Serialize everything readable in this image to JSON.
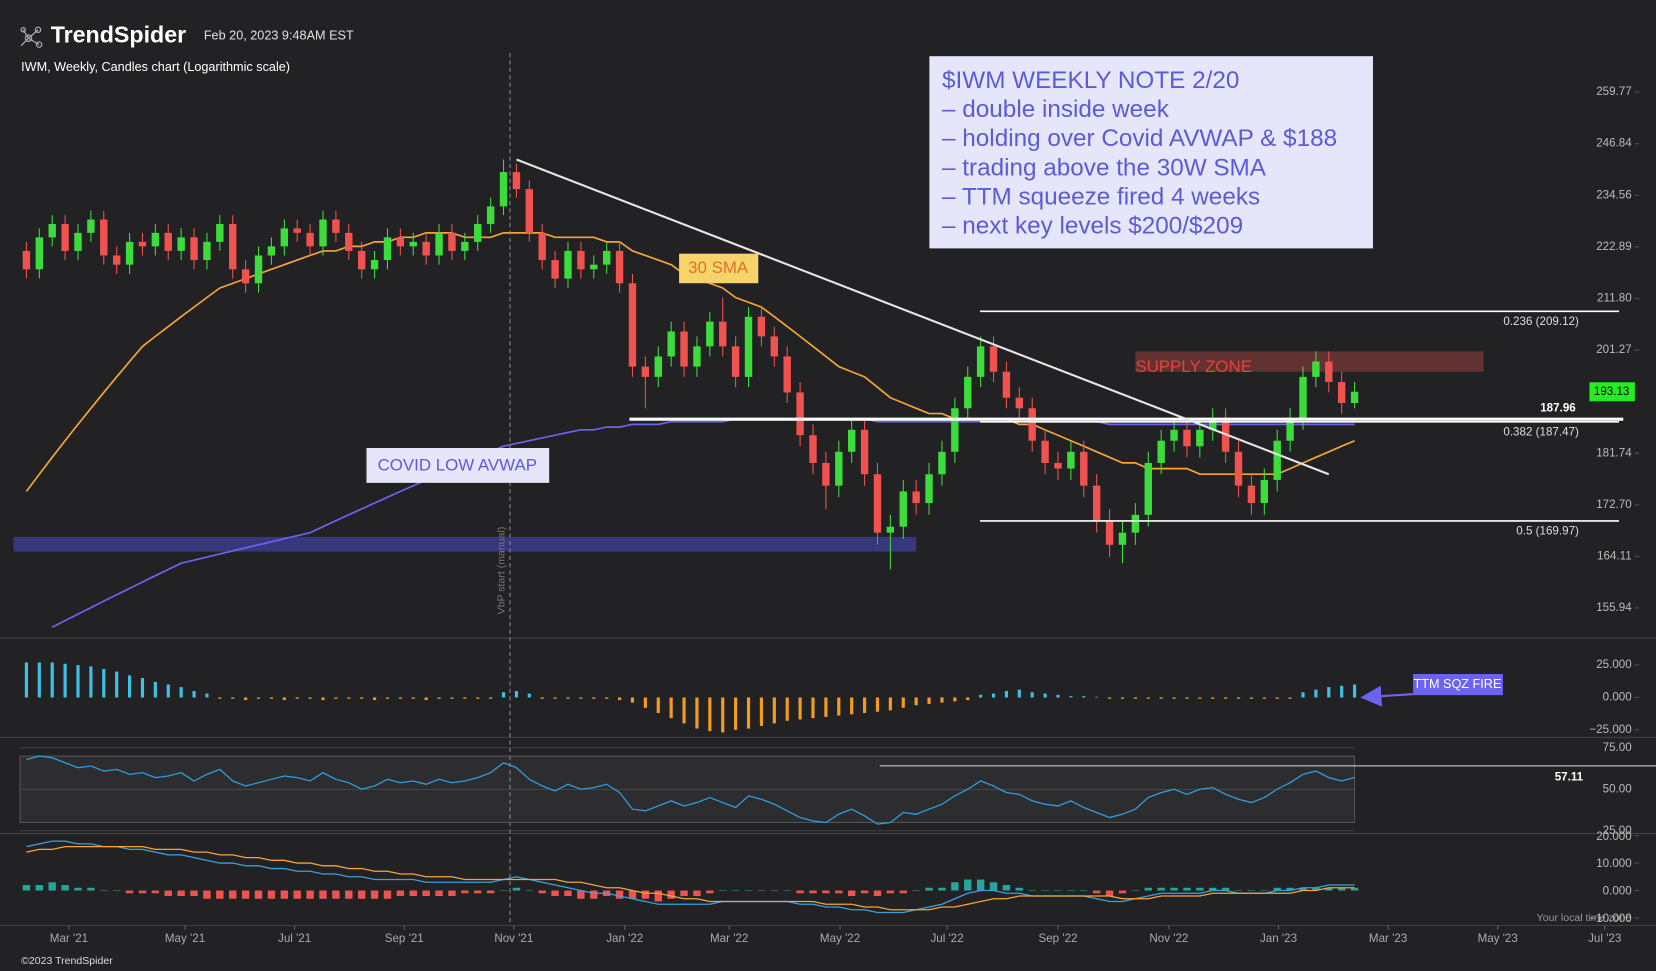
{
  "header": {
    "brand": "TrendSpider",
    "timestamp": "Feb 20, 2023 9:48AM EST",
    "subtitle": "IWM, Weekly, Candles chart (Logarithmic scale)",
    "copyright": "©2023 TrendSpider",
    "timezone": "Your local time zone"
  },
  "chart_data": [
    {
      "type": "candlestick",
      "log_scale": true,
      "xlim": [
        -1,
        124
      ],
      "xticks": [
        {
          "value": 3.3,
          "label": "Mar '21"
        },
        {
          "value": 12.3,
          "label": "May '21"
        },
        {
          "value": 20.8,
          "label": "Jul '21"
        },
        {
          "value": 29.3,
          "label": "Sep '21"
        },
        {
          "value": 37.8,
          "label": "Nov '21"
        },
        {
          "value": 46.4,
          "label": "Jan '22"
        },
        {
          "value": 54.5,
          "label": "Mar '22"
        },
        {
          "value": 63.1,
          "label": "May '22"
        },
        {
          "value": 71.4,
          "label": "Jul '22"
        },
        {
          "value": 80,
          "label": "Sep '22"
        },
        {
          "value": 88.6,
          "label": "Nov '22"
        },
        {
          "value": 97.1,
          "label": "Jan '23"
        },
        {
          "value": 105.6,
          "label": "Mar '23"
        },
        {
          "value": 114.1,
          "label": "May '23"
        },
        {
          "value": 122.4,
          "label": "Jul '23"
        }
      ],
      "ylim": [
        152,
        270
      ],
      "yticks": [
        155.94,
        164.11,
        {
          "value": 172.7,
          "label": "172.70"
        },
        181.74,
        201.27,
        {
          "value": 211.8,
          "label": "211.80"
        },
        222.89,
        234.56,
        246.84,
        259.77
      ],
      "up_color": "#3ddc3d",
      "down_color": "#f0524f",
      "open": [
        222,
        218,
        225,
        228,
        222,
        226,
        229,
        221,
        219,
        224,
        223,
        226,
        222,
        225,
        220,
        224,
        228,
        218,
        215,
        221,
        223,
        227,
        226,
        223,
        229,
        226,
        222,
        218,
        220,
        225,
        223,
        224,
        221,
        226,
        222,
        224,
        228,
        232,
        240,
        236,
        226,
        220,
        216,
        222,
        218,
        219,
        222,
        215,
        198,
        196,
        200,
        205,
        198,
        202,
        207,
        202,
        196,
        208,
        204,
        200,
        193,
        185,
        180,
        176,
        182,
        186,
        178,
        168,
        169,
        175,
        173,
        178,
        182,
        190,
        196,
        202,
        197,
        192,
        190,
        184,
        180,
        179,
        182,
        176,
        170,
        166,
        168,
        171,
        180,
        184,
        186,
        183,
        186,
        188,
        182,
        176,
        173,
        177,
        184,
        188,
        196,
        199,
        195,
        191
      ],
      "high": [
        224,
        227,
        230,
        230,
        228,
        231,
        231,
        223,
        226,
        226,
        228,
        228,
        227,
        227,
        226,
        230,
        230,
        220,
        223,
        225,
        229,
        229,
        228,
        231,
        231,
        228,
        224,
        222,
        227,
        227,
        226,
        226,
        228,
        228,
        226,
        230,
        234,
        243,
        242,
        238,
        228,
        222,
        224,
        224,
        221,
        224,
        224,
        217,
        200,
        202,
        207,
        207,
        204,
        209,
        212,
        204,
        210,
        210,
        206,
        202,
        195,
        187,
        182,
        184,
        188,
        188,
        180,
        171,
        177,
        177,
        180,
        184,
        192,
        198,
        204,
        204,
        199,
        194,
        192,
        186,
        182,
        184,
        184,
        178,
        172,
        170,
        173,
        182,
        186,
        188,
        188,
        188,
        190,
        190,
        184,
        178,
        179,
        186,
        190,
        198,
        201,
        201,
        197,
        195
      ],
      "low": [
        216,
        216,
        223,
        220,
        220,
        224,
        219,
        217,
        217,
        221,
        221,
        220,
        220,
        218,
        218,
        222,
        216,
        213,
        213,
        219,
        221,
        224,
        221,
        221,
        224,
        220,
        216,
        216,
        218,
        221,
        221,
        219,
        219,
        220,
        220,
        222,
        226,
        230,
        234,
        224,
        218,
        214,
        214,
        216,
        216,
        217,
        213,
        196,
        190,
        194,
        198,
        196,
        196,
        200,
        200,
        194,
        194,
        202,
        198,
        191,
        183,
        178,
        172,
        174,
        180,
        176,
        166,
        162,
        167,
        171,
        171,
        176,
        180,
        188,
        194,
        195,
        190,
        188,
        182,
        178,
        177,
        177,
        174,
        168,
        164,
        163,
        166,
        169,
        178,
        182,
        181,
        181,
        184,
        180,
        174,
        171,
        171,
        175,
        182,
        186,
        194,
        193,
        189,
        190
      ],
      "close": [
        218,
        225,
        228,
        222,
        226,
        229,
        221,
        219,
        224,
        223,
        226,
        222,
        225,
        220,
        224,
        228,
        218,
        215,
        221,
        223,
        227,
        226,
        223,
        229,
        226,
        222,
        218,
        220,
        225,
        223,
        224,
        221,
        226,
        222,
        224,
        228,
        232,
        240,
        236,
        226,
        220,
        216,
        222,
        218,
        219,
        222,
        215,
        198,
        196,
        200,
        205,
        198,
        202,
        207,
        202,
        196,
        208,
        204,
        200,
        193,
        185,
        180,
        176,
        182,
        186,
        178,
        168,
        169,
        175,
        173,
        178,
        182,
        190,
        196,
        202,
        197,
        192,
        190,
        184,
        180,
        179,
        182,
        176,
        170,
        166,
        168,
        171,
        180,
        184,
        186,
        183,
        186,
        188,
        182,
        176,
        173,
        177,
        184,
        188,
        196,
        199,
        195,
        191,
        193.13
      ],
      "series": [
        {
          "name": "30 SMA",
          "color": "#f5a33a",
          "values": [
            175,
            178,
            181,
            184,
            187,
            190,
            193,
            196,
            199,
            202,
            204,
            206,
            208,
            210,
            212,
            214,
            215,
            216,
            217,
            218,
            219,
            220,
            221,
            222,
            222,
            223,
            223,
            224,
            224,
            225,
            225,
            226,
            226,
            226,
            225,
            225,
            225,
            226,
            226,
            226,
            226,
            225,
            225,
            225,
            225,
            224,
            224,
            222,
            221,
            220,
            219,
            217,
            216,
            215,
            214,
            212,
            211,
            210,
            208,
            206,
            204,
            202,
            200,
            198,
            197,
            196,
            194,
            192,
            191,
            190,
            189,
            189,
            188,
            188,
            188,
            188,
            188,
            187,
            187,
            186,
            185,
            184,
            183,
            182,
            181,
            180,
            180,
            179,
            179,
            179,
            179,
            178,
            178,
            178,
            178,
            178,
            178,
            178,
            179,
            180,
            181,
            182,
            183,
            184
          ]
        },
        {
          "name": "COVID LOW AVWAP",
          "color": "#6c64f0",
          "values": [
            null,
            null,
            153,
            154,
            155,
            156,
            157,
            158,
            159,
            160,
            161,
            162,
            163,
            163.5,
            164,
            164.5,
            165,
            165.5,
            166,
            166.5,
            167,
            167.5,
            168,
            169,
            170,
            171,
            172,
            173,
            174,
            175,
            176,
            177,
            178,
            179,
            180,
            181,
            182,
            183,
            183.5,
            184,
            184.5,
            185,
            185.5,
            186,
            186,
            186.5,
            186.5,
            187,
            187,
            187,
            187.5,
            187.5,
            187.5,
            187.5,
            187.5,
            188,
            188,
            188,
            188,
            188,
            188,
            188,
            188,
            188,
            188,
            188,
            187.5,
            187.5,
            187.5,
            187.5,
            187.5,
            187.5,
            187.5,
            187.5,
            187.5,
            187.5,
            187.5,
            187.5,
            187.5,
            187.5,
            187.5,
            187.5,
            187.5,
            187.5,
            187,
            187,
            187,
            187,
            187,
            187,
            187,
            187,
            187,
            187,
            187,
            187,
            187,
            187,
            187,
            187,
            187,
            187,
            187,
            187
          ]
        }
      ],
      "support": 187.96,
      "fib_levels": [
        {
          "value": 209.12,
          "label": "0.236 (209.12)"
        },
        {
          "value": 187.47,
          "label": "0.382 (187.47)"
        },
        {
          "value": 169.97,
          "label": "0.5 (169.97)"
        }
      ],
      "supply_zone": {
        "label": "SUPPLY ZONE",
        "low": 197,
        "high": 201,
        "x": [
          86,
          113
        ]
      },
      "avwap_band": {
        "low": 164.9,
        "high": 167.3,
        "x": [
          -1,
          69
        ]
      },
      "trendline": {
        "x": [
          38,
          101
        ],
        "y": [
          243,
          178
        ]
      },
      "vbp_start": {
        "label": "VbP start (manual)",
        "x": 37.5
      },
      "note": [
        "$IWM WEEKLY NOTE 2/20",
        "– double inside week",
        "– holding over Covid AVWAP & $188",
        "– trading above the 30W SMA",
        "– TTM squeeze fired 4 weeks",
        "– next key levels $200/$209"
      ]
    },
    {
      "type": "bar",
      "annotation": "TTM SQZ FIRE",
      "ylim": [
        -30,
        45
      ],
      "yticks": [
        {
          "value": 25,
          "label": "25.000"
        },
        {
          "value": 0,
          "label": "0.000"
        },
        {
          "value": -25,
          "label": "−25.000"
        }
      ],
      "up_color": "#3fc1e6",
      "down_color": "#f39c1f",
      "values": [
        27,
        27,
        27,
        26,
        25,
        24,
        22,
        20,
        17,
        15,
        12,
        10,
        8,
        5,
        3,
        -1,
        -1,
        -2,
        -1,
        -1,
        -2,
        -1,
        -1,
        -2,
        -1,
        -1,
        -1,
        -2,
        -1,
        -1,
        -1,
        -2,
        -1,
        -1,
        -1,
        -1,
        -1,
        4,
        5,
        3,
        -1,
        -1,
        -1,
        -1,
        -1,
        -1,
        -2,
        -4,
        -8,
        -12,
        -16,
        -20,
        -24,
        -26,
        -27,
        -25,
        -24,
        -22,
        -20,
        -18,
        -17,
        -16,
        -15,
        -14,
        -13,
        -12,
        -11,
        -10,
        -8,
        -6,
        -5,
        -4,
        -3,
        -2,
        2,
        3,
        5,
        6,
        4,
        3,
        2,
        1,
        1,
        0.5,
        -1,
        -1,
        -1,
        -1,
        -1,
        -1,
        -1,
        -1,
        -1,
        -1,
        -1,
        -1,
        -1,
        -1,
        -1,
        4,
        6,
        8,
        9,
        10
      ]
    },
    {
      "type": "line",
      "color": "#2d9fe0",
      "ylim": [
        24,
        80
      ],
      "yticks": [
        {
          "value": 75,
          "label": "75.00"
        },
        {
          "value": 50,
          "label": "50.00"
        },
        {
          "value": 25,
          "label": "25.00"
        }
      ],
      "band": [
        30,
        70
      ],
      "values": [
        68,
        70,
        69,
        66,
        63,
        64,
        61,
        62,
        59,
        60,
        57,
        58,
        60,
        55,
        59,
        62,
        55,
        52,
        54,
        56,
        58,
        57,
        55,
        60,
        56,
        54,
        50,
        52,
        56,
        54,
        55,
        53,
        56,
        54,
        55,
        57,
        60,
        66,
        63,
        56,
        52,
        49,
        53,
        50,
        51,
        53,
        48,
        38,
        37,
        40,
        43,
        40,
        42,
        45,
        42,
        39,
        46,
        44,
        41,
        37,
        33,
        31,
        30,
        35,
        38,
        34,
        29,
        30,
        36,
        35,
        38,
        41,
        46,
        50,
        55,
        52,
        48,
        47,
        43,
        41,
        40,
        43,
        39,
        36,
        33,
        35,
        38,
        45,
        48,
        50,
        47,
        50,
        51,
        47,
        44,
        42,
        45,
        50,
        54,
        59,
        61,
        57,
        55,
        57.11
      ]
    },
    {
      "type": "macd",
      "ylim": [
        -12.7,
        20.4
      ],
      "yticks": [
        {
          "value": 20,
          "label": "20.000"
        },
        {
          "value": 10,
          "label": "10.000"
        },
        {
          "value": 0,
          "label": "0.000"
        },
        {
          "value": -10,
          "label": "−10.000"
        }
      ],
      "macd_color": "#3aa0e0",
      "signal_color": "#f5a33a",
      "up_color": "#26a69a",
      "down_color": "#ef5350",
      "macd": [
        16,
        17,
        18,
        18,
        17,
        17,
        16,
        16,
        15,
        15,
        14,
        13,
        13,
        12,
        11,
        10,
        10,
        9,
        9,
        8,
        8,
        7,
        7,
        6,
        6,
        5,
        5,
        4,
        4,
        4,
        4,
        3,
        3,
        3,
        3,
        3,
        3,
        4,
        5,
        4,
        3,
        2,
        1,
        0,
        -1,
        -1,
        -2,
        -3,
        -4,
        -5,
        -5,
        -5,
        -5,
        -5,
        -4,
        -4,
        -4,
        -4,
        -4,
        -4,
        -5,
        -5,
        -6,
        -6,
        -7,
        -7,
        -8,
        -8,
        -8,
        -7,
        -6,
        -5,
        -3,
        -1,
        0,
        0,
        -1,
        -1,
        -2,
        -2,
        -2,
        -2,
        -2,
        -3,
        -4,
        -4,
        -3,
        -2,
        -1,
        -1,
        -1,
        -1,
        0,
        0,
        -1,
        -1,
        -1,
        0,
        0,
        1,
        1,
        2,
        2,
        2
      ],
      "signal": [
        14,
        15,
        15,
        16,
        16,
        16,
        16,
        16,
        16,
        16,
        15,
        15,
        15,
        14,
        14,
        13,
        13,
        12,
        12,
        11,
        11,
        10,
        10,
        9,
        9,
        8,
        8,
        7,
        7,
        6,
        6,
        5,
        5,
        5,
        4,
        4,
        4,
        4,
        4,
        4,
        4,
        4,
        3,
        3,
        2,
        1,
        1,
        0,
        -1,
        -1,
        -2,
        -3,
        -3,
        -4,
        -4,
        -4,
        -4,
        -4,
        -4,
        -4,
        -4,
        -4,
        -5,
        -5,
        -5,
        -6,
        -6,
        -7,
        -7,
        -7,
        -7,
        -6,
        -6,
        -5,
        -4,
        -3,
        -3,
        -2,
        -2,
        -2,
        -2,
        -2,
        -2,
        -2,
        -2,
        -3,
        -3,
        -3,
        -2,
        -2,
        -2,
        -2,
        -1,
        -1,
        -1,
        -1,
        -1,
        -1,
        -1,
        0,
        0,
        1,
        1,
        1
      ],
      "histogram": [
        2,
        2,
        3,
        2,
        1,
        1,
        0,
        0,
        -1,
        -1,
        -1,
        -2,
        -2,
        -2,
        -3,
        -3,
        -3,
        -3,
        -3,
        -3,
        -3,
        -3,
        -3,
        -3,
        -3,
        -3,
        -3,
        -3,
        -3,
        -2,
        -2,
        -2,
        -2,
        -2,
        -1,
        -1,
        -1,
        0,
        1,
        0,
        -1,
        -2,
        -2,
        -3,
        -3,
        -2,
        -3,
        -3,
        -3,
        -4,
        -3,
        -2,
        -2,
        -1,
        0,
        0,
        0,
        0,
        0,
        0,
        -1,
        -1,
        -1,
        -1,
        -2,
        -1,
        -2,
        -1,
        -1,
        0,
        1,
        1,
        3,
        4,
        4,
        3,
        2,
        1,
        0,
        0,
        0,
        0,
        0,
        -1,
        -2,
        -1,
        0,
        1,
        1,
        1,
        1,
        1,
        1,
        1,
        0,
        0,
        0,
        1,
        1,
        1,
        1,
        1,
        1,
        1
      ]
    }
  ]
}
